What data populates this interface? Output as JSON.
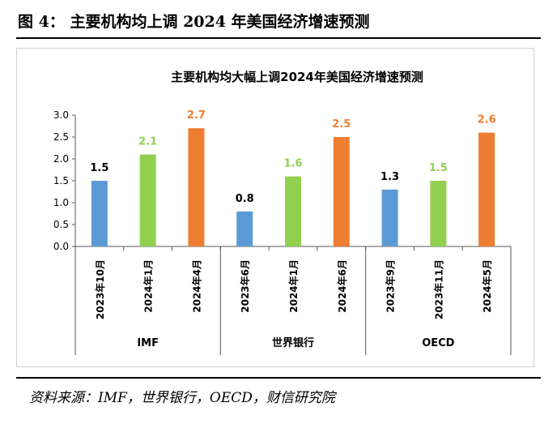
{
  "figure": {
    "title": "图 4：  主要机构均上调 2024 年美国经济增速预测",
    "source": "资料来源：IMF，世界银行，OECD，财信研究院"
  },
  "chart_data": {
    "type": "bar",
    "title": "主要机构均大幅上调2024年美国经济增速预测",
    "xlabel": "",
    "ylabel": "",
    "ylim": [
      0,
      3.0
    ],
    "yticks": [
      "0.0",
      "0.5",
      "1.0",
      "1.5",
      "2.0",
      "2.5",
      "3.0"
    ],
    "groups": [
      {
        "name": "IMF",
        "categories": [
          "2023年10月",
          "2024年1月",
          "2024年4月"
        ],
        "values": [
          1.5,
          2.1,
          2.7
        ]
      },
      {
        "name": "世界银行",
        "categories": [
          "2023年6月",
          "2024年1月",
          "2024年6月"
        ],
        "values": [
          0.8,
          1.6,
          2.5
        ]
      },
      {
        "name": "OECD",
        "categories": [
          "2023年9月",
          "2023年11月",
          "2024年5月"
        ],
        "values": [
          1.3,
          1.5,
          2.6
        ]
      }
    ],
    "colors": [
      "#5b9bd5",
      "#92d050",
      "#ed7d31"
    ],
    "value_label_colors": [
      "#000000",
      "#92d050",
      "#ed7d31"
    ],
    "grid": false,
    "legend": "none"
  }
}
